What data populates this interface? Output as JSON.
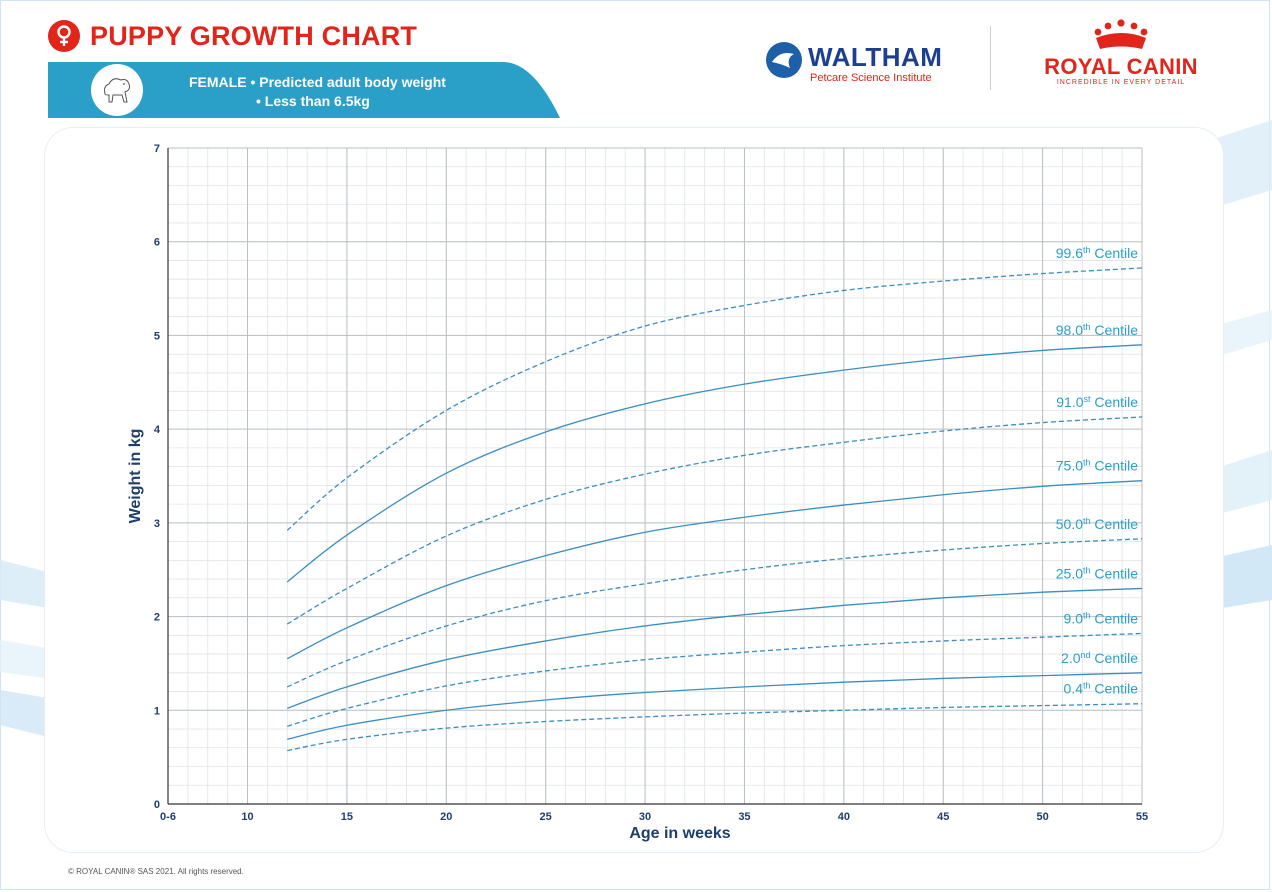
{
  "header": {
    "title": "PUPPY GROWTH CHART",
    "banner_line1": "FEMALE • Predicted adult body weight",
    "banner_line2": "• Less than 6.5kg",
    "colors": {
      "brand_red": "#e1251b",
      "banner_blue": "#2aa0c8",
      "navy": "#1d3f8f"
    }
  },
  "logos": {
    "waltham_name": "WALTHAM",
    "waltham_sub": "Petcare Science Institute",
    "rc_name": "ROYAL CANIN",
    "rc_tagline": "INCREDIBLE IN EVERY DETAIL"
  },
  "footer": {
    "copyright": "© ROYAL CANIN® SAS 2021. All rights reserved."
  },
  "chart_data": {
    "type": "line",
    "xlabel": "Age in weeks",
    "ylabel": "Weight in kg",
    "xlim": [
      6,
      55
    ],
    "ylim": [
      0,
      7
    ],
    "x_ticks": [
      {
        "value": 6,
        "label": "0-6"
      },
      {
        "value": 10,
        "label": "10"
      },
      {
        "value": 15,
        "label": "15"
      },
      {
        "value": 20,
        "label": "20"
      },
      {
        "value": 25,
        "label": "25"
      },
      {
        "value": 30,
        "label": "30"
      },
      {
        "value": 35,
        "label": "35"
      },
      {
        "value": 40,
        "label": "40"
      },
      {
        "value": 45,
        "label": "45"
      },
      {
        "value": 50,
        "label": "50"
      },
      {
        "value": 55,
        "label": "55"
      }
    ],
    "y_ticks": [
      0,
      1,
      2,
      3,
      4,
      5,
      6,
      7
    ],
    "grid": true,
    "x": [
      12,
      15,
      20,
      25,
      30,
      35,
      40,
      45,
      50,
      55
    ],
    "series": [
      {
        "name": "99.6th Centile",
        "num": "99.6",
        "sup": "th",
        "style": "dashed",
        "values": [
          2.92,
          3.48,
          4.2,
          4.72,
          5.1,
          5.32,
          5.48,
          5.58,
          5.66,
          5.72
        ]
      },
      {
        "name": "98.0th Centile",
        "num": "98.0",
        "sup": "th",
        "style": "solid",
        "values": [
          2.37,
          2.87,
          3.53,
          3.97,
          4.27,
          4.48,
          4.63,
          4.75,
          4.84,
          4.9
        ]
      },
      {
        "name": "91.0st Centile",
        "num": "91.0",
        "sup": "st",
        "style": "dashed",
        "values": [
          1.92,
          2.3,
          2.86,
          3.25,
          3.52,
          3.72,
          3.86,
          3.98,
          4.07,
          4.13
        ]
      },
      {
        "name": "75.0th Centile",
        "num": "75.0",
        "sup": "th",
        "style": "solid",
        "values": [
          1.55,
          1.88,
          2.33,
          2.65,
          2.9,
          3.06,
          3.19,
          3.3,
          3.39,
          3.45
        ]
      },
      {
        "name": "50.0th Centile",
        "num": "50.0",
        "sup": "th",
        "style": "dashed",
        "values": [
          1.25,
          1.53,
          1.9,
          2.17,
          2.35,
          2.5,
          2.62,
          2.71,
          2.78,
          2.83
        ]
      },
      {
        "name": "25.0th Centile",
        "num": "25.0",
        "sup": "th",
        "style": "solid",
        "values": [
          1.02,
          1.25,
          1.54,
          1.74,
          1.9,
          2.02,
          2.12,
          2.2,
          2.26,
          2.3
        ]
      },
      {
        "name": "9.0th Centile",
        "num": "9.0",
        "sup": "th",
        "style": "dashed",
        "values": [
          0.83,
          1.02,
          1.26,
          1.42,
          1.54,
          1.62,
          1.69,
          1.74,
          1.78,
          1.82
        ]
      },
      {
        "name": "2.0nd Centile",
        "num": "2.0",
        "sup": "nd",
        "style": "solid",
        "values": [
          0.69,
          0.84,
          1.0,
          1.11,
          1.19,
          1.25,
          1.3,
          1.34,
          1.37,
          1.4
        ]
      },
      {
        "name": "0.4th Centile",
        "num": "0.4",
        "sup": "th",
        "style": "dashed",
        "values": [
          0.57,
          0.69,
          0.81,
          0.88,
          0.93,
          0.97,
          1.0,
          1.03,
          1.05,
          1.07
        ]
      }
    ],
    "line_color": "#3a8ec2",
    "label_color": "#2a9fc9",
    "label_word": "Centile"
  }
}
